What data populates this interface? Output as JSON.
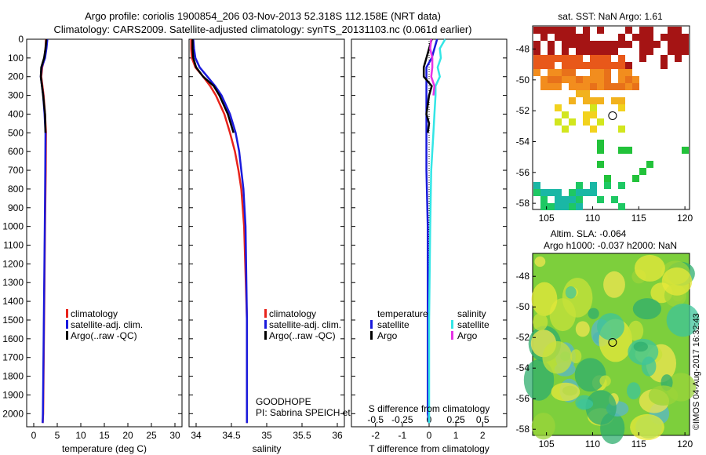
{
  "header": {
    "line1": "Argo profile: coriolis 1900854_206 03-Nov-2013 52.318S 112.158E (NRT data)",
    "line2": "Climatology: CARS2009. Satellite-adjusted climatology: synTS_20131103.nc (0.061d earlier)"
  },
  "colors": {
    "climatology": "#e8231b",
    "satellite": "#1a1adc",
    "argo": "#000000",
    "sal_satellite": "#33e6e6",
    "sal_argo": "#e633e6"
  },
  "chart_data": [
    {
      "type": "line",
      "id": "temperature",
      "xlabel": "temperature (deg C)",
      "ylabel": "",
      "xlim": [
        -1.5,
        31.5
      ],
      "ylim": [
        2070,
        0
      ],
      "xticks": [
        0,
        5,
        10,
        15,
        20,
        25,
        30
      ],
      "yticks": [
        0,
        100,
        200,
        300,
        400,
        500,
        600,
        700,
        800,
        900,
        1000,
        1100,
        1200,
        1300,
        1400,
        1500,
        1600,
        1700,
        1800,
        1900,
        2000
      ],
      "legend": [
        "climatology",
        "satellite-adj. clim.",
        "Argo(..raw -QC)"
      ],
      "series": [
        {
          "name": "climatology",
          "depth": [
            0,
            50,
            100,
            150,
            200,
            300,
            400,
            500,
            700,
            1000,
            1500,
            2000,
            2050
          ],
          "values": [
            2.6,
            2.5,
            2.3,
            1.8,
            1.6,
            2.1,
            2.4,
            2.6,
            2.55,
            2.4,
            2.2,
            2.0,
            1.9
          ]
        },
        {
          "name": "satellite-adj. clim.",
          "depth": [
            0,
            50,
            100,
            150,
            200,
            300,
            400,
            500,
            700,
            1000,
            1500,
            2000,
            2050
          ],
          "values": [
            2.9,
            2.7,
            2.4,
            1.7,
            1.5,
            2.0,
            2.3,
            2.5,
            2.45,
            2.35,
            2.15,
            1.95,
            1.9
          ]
        },
        {
          "name": "Argo(..raw -QC)",
          "depth": [
            0,
            50,
            100,
            150,
            200,
            300,
            400,
            500
          ],
          "values": [
            2.7,
            2.5,
            2.2,
            1.6,
            1.5,
            2.0,
            2.4,
            2.5
          ]
        }
      ]
    },
    {
      "type": "line",
      "id": "salinity",
      "xlabel": "salinity",
      "xlim": [
        33.9,
        36.1
      ],
      "ylim": [
        2070,
        0
      ],
      "xticks": [
        34,
        34.5,
        35,
        35.5,
        36
      ],
      "legend": [
        "climatology",
        "satellite-adj. clim.",
        "Argo(..raw -QC)"
      ],
      "series": [
        {
          "name": "climatology",
          "depth": [
            0,
            50,
            100,
            150,
            200,
            250,
            300,
            400,
            500,
            600,
            700,
            800,
            1000,
            1500,
            2000,
            2050
          ],
          "values": [
            33.93,
            33.93,
            33.94,
            33.99,
            34.1,
            34.2,
            34.28,
            34.4,
            34.48,
            34.55,
            34.6,
            34.64,
            34.68,
            34.72,
            34.72,
            34.72
          ]
        },
        {
          "name": "satellite-adj. clim.",
          "depth": [
            0,
            50,
            100,
            150,
            200,
            250,
            300,
            400,
            500,
            600,
            700,
            800,
            1000,
            1500,
            2000,
            2050
          ],
          "values": [
            33.96,
            33.97,
            33.99,
            34.05,
            34.16,
            34.27,
            34.36,
            34.48,
            34.56,
            34.61,
            34.64,
            34.67,
            34.7,
            34.72,
            34.72,
            34.72
          ]
        },
        {
          "name": "Argo(..raw -QC)",
          "depth": [
            0,
            50,
            100,
            150,
            200,
            250,
            300,
            400,
            500
          ],
          "values": [
            33.95,
            33.95,
            33.96,
            34.0,
            34.1,
            34.25,
            34.33,
            34.45,
            34.53
          ]
        }
      ],
      "annotation": {
        "project": "GOODHOPE",
        "pi": "PI: Sabrina SPEICH et Michel ARHAN"
      }
    },
    {
      "type": "line",
      "id": "difference",
      "xlabel": "T difference from climatology",
      "xlabel2": "S difference from climatology",
      "xlim": [
        -2.9,
        2.9
      ],
      "ylim": [
        2070,
        0
      ],
      "xticks": [
        -2,
        -1,
        0,
        1,
        2
      ],
      "xticks2": [
        -0.5,
        -0.25,
        0,
        0.25,
        0.5
      ],
      "legend_titles": [
        "temperature",
        "salinity"
      ],
      "legend": [
        "satellite",
        "Argo",
        "satellite",
        "Argo"
      ],
      "series": [
        {
          "name": "temperature satellite",
          "depth": [
            0,
            50,
            100,
            150,
            200,
            250,
            300,
            400,
            500,
            700,
            1000,
            1500,
            2000,
            2050
          ],
          "values": [
            0.3,
            0.2,
            0.1,
            -0.1,
            -0.1,
            -0.1,
            -0.1,
            -0.1,
            -0.1,
            -0.1,
            -0.05,
            -0.05,
            -0.05,
            0
          ]
        },
        {
          "name": "temperature Argo",
          "depth": [
            0,
            50,
            100,
            150,
            200,
            250,
            300,
            400,
            450,
            500
          ],
          "values": [
            0.1,
            0.0,
            -0.1,
            -0.2,
            -0.2,
            0.1,
            0.0,
            -0.1,
            0.0,
            -0.05
          ]
        },
        {
          "name": "salinity satellite",
          "depth": [
            0,
            50,
            100,
            150,
            200,
            250,
            300,
            400,
            500,
            700,
            1000,
            1500,
            2000,
            2050
          ],
          "values": [
            0.15,
            0.1,
            0.11,
            0.08,
            0.1,
            0.06,
            0.06,
            0.05,
            0.04,
            0.02,
            0.01,
            0,
            0,
            0
          ]
        },
        {
          "name": "salinity Argo",
          "depth": [
            0,
            50,
            100,
            150,
            200,
            250,
            300
          ],
          "values": [
            0.02,
            0.01,
            0.03,
            0.03,
            0.02,
            0.05,
            0.04
          ]
        }
      ]
    },
    {
      "type": "heatmap",
      "id": "sst-map",
      "title": "sat. SST: NaN Argo: 1.61",
      "xticks": [
        105,
        110,
        115,
        120
      ],
      "yticks": [
        -48,
        -50,
        -52,
        -54,
        -56,
        -58
      ],
      "xlim": [
        103.5,
        120.5
      ],
      "ylim": [
        -58.4,
        -46.5
      ],
      "marker": {
        "lon": 112.16,
        "lat": -52.32
      }
    },
    {
      "type": "heatmap",
      "id": "sla-map",
      "title1": "Altim. SLA: -0.064",
      "title2": "Argo h1000: -0.037 h2000: NaN",
      "xticks": [
        105,
        110,
        115,
        120
      ],
      "yticks": [
        -48,
        -50,
        -52,
        -54,
        -56,
        -58
      ],
      "xlim": [
        103.5,
        120.5
      ],
      "ylim": [
        -58.4,
        -46.5
      ],
      "marker": {
        "lon": 112.16,
        "lat": -52.32
      },
      "stamp": "©IMOS 04-Aug-2017 16:32:43"
    }
  ]
}
